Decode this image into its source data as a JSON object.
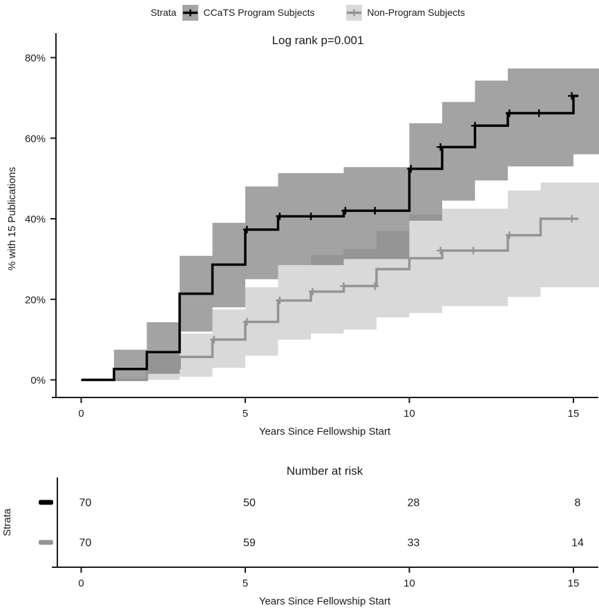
{
  "legend": {
    "title": "Strata",
    "items": [
      {
        "label": "CCaTS Program Subjects",
        "line_color": "#000000",
        "band_color": "#6e6e6e",
        "band_opacity": 0.63,
        "key_bg": "#a4a4a4"
      },
      {
        "label": "Non-Program Subjects",
        "line_color": "#949494",
        "band_color": "#d9d9d9",
        "band_opacity": 1.0,
        "key_bg": "#d9d9d9"
      }
    ]
  },
  "chart_data": {
    "type": "line",
    "subtype": "kaplan-meier-step",
    "title": "Log rank p=0.001",
    "xlabel": "Years Since Fellowship Start",
    "ylabel": "% with 15 Publications",
    "xlim": [
      0,
      15
    ],
    "ylim": [
      0,
      80
    ],
    "xtick_values": [
      0,
      5,
      10,
      15
    ],
    "xtick_labels": [
      "0",
      "5",
      "10",
      "15"
    ],
    "ytick_values": [
      0,
      20,
      40,
      60,
      80
    ],
    "ytick_labels": [
      "0%",
      "20%",
      "40%",
      "60%",
      "80%"
    ],
    "grid": false,
    "legend_position": "top",
    "series": [
      {
        "name": "CCaTS Program Subjects",
        "color": "#000000",
        "end_time": 15.15,
        "steps": [
          [
            0,
            0
          ],
          [
            1,
            2.7
          ],
          [
            2,
            6.9
          ],
          [
            3,
            21.4
          ],
          [
            4,
            28.6
          ],
          [
            5,
            37.3
          ],
          [
            6,
            40.6
          ],
          [
            8,
            42.0
          ],
          [
            10,
            52.4
          ],
          [
            11,
            57.8
          ],
          [
            12,
            63.1
          ],
          [
            13,
            66.2
          ],
          [
            15,
            70.5
          ]
        ],
        "censors": [
          [
            5.05,
            37.3
          ],
          [
            6.05,
            40.6
          ],
          [
            7.0,
            40.6
          ],
          [
            8.05,
            42.0
          ],
          [
            8.95,
            42.0
          ],
          [
            10.05,
            52.4
          ],
          [
            10.95,
            57.8
          ],
          [
            12.0,
            63.1
          ],
          [
            13.05,
            66.2
          ],
          [
            13.95,
            66.2
          ],
          [
            14.95,
            70.5
          ]
        ],
        "band": [
          [
            1,
            0,
            7.5
          ],
          [
            2,
            1.5,
            14.3
          ],
          [
            3,
            12,
            30.8
          ],
          [
            4,
            18,
            39
          ],
          [
            5,
            25,
            48
          ],
          [
            6,
            28.5,
            51.3
          ],
          [
            8,
            30,
            52.8
          ],
          [
            10,
            39.5,
            63.7
          ],
          [
            11,
            44.5,
            69
          ],
          [
            12,
            49.5,
            74.3
          ],
          [
            13,
            53,
            77.3
          ],
          [
            15,
            56,
            77.3
          ]
        ]
      },
      {
        "name": "Non-Program Subjects",
        "color": "#949494",
        "end_time": 15.15,
        "steps": [
          [
            0,
            0
          ],
          [
            2,
            2.9
          ],
          [
            3,
            5.7
          ],
          [
            4,
            10.0
          ],
          [
            5,
            14.4
          ],
          [
            6,
            19.7
          ],
          [
            7,
            21.9
          ],
          [
            8,
            23.3
          ],
          [
            9,
            27.5
          ],
          [
            10,
            30.2
          ],
          [
            11,
            32.1
          ],
          [
            13,
            35.9
          ],
          [
            14,
            40.0
          ]
        ],
        "censors": [
          [
            2.0,
            2.9
          ],
          [
            4.05,
            10.0
          ],
          [
            5.05,
            14.4
          ],
          [
            6.05,
            19.7
          ],
          [
            7.05,
            21.9
          ],
          [
            8.0,
            23.3
          ],
          [
            8.95,
            23.3
          ],
          [
            10.95,
            32.1
          ],
          [
            11.95,
            32.1
          ],
          [
            13.05,
            35.9
          ],
          [
            14.95,
            40.0
          ]
        ],
        "band": [
          [
            2,
            0,
            7
          ],
          [
            3,
            0.8,
            11.5
          ],
          [
            4,
            3,
            17.5
          ],
          [
            5,
            6,
            23
          ],
          [
            6,
            10,
            28.5
          ],
          [
            7,
            11.5,
            31
          ],
          [
            8,
            12.5,
            32.5
          ],
          [
            9,
            15.5,
            37
          ],
          [
            10,
            16.6,
            41
          ],
          [
            11,
            18.3,
            42.5
          ],
          [
            13,
            20.6,
            47
          ],
          [
            14,
            23,
            49
          ]
        ]
      }
    ]
  },
  "risk_table": {
    "title": "Number at risk",
    "axis_label": "Strata",
    "xlabel": "Years Since Fellowship Start",
    "xtick_values": [
      0,
      5,
      10,
      15
    ],
    "xtick_labels": [
      "0",
      "5",
      "10",
      "15"
    ],
    "rows": [
      {
        "strata": "CCaTS Program Subjects",
        "color": "#000000",
        "counts": [
          "70",
          "50",
          "28",
          "8"
        ]
      },
      {
        "strata": "Non-Program Subjects",
        "color": "#949494",
        "counts": [
          "70",
          "59",
          "33",
          "14"
        ]
      }
    ]
  }
}
